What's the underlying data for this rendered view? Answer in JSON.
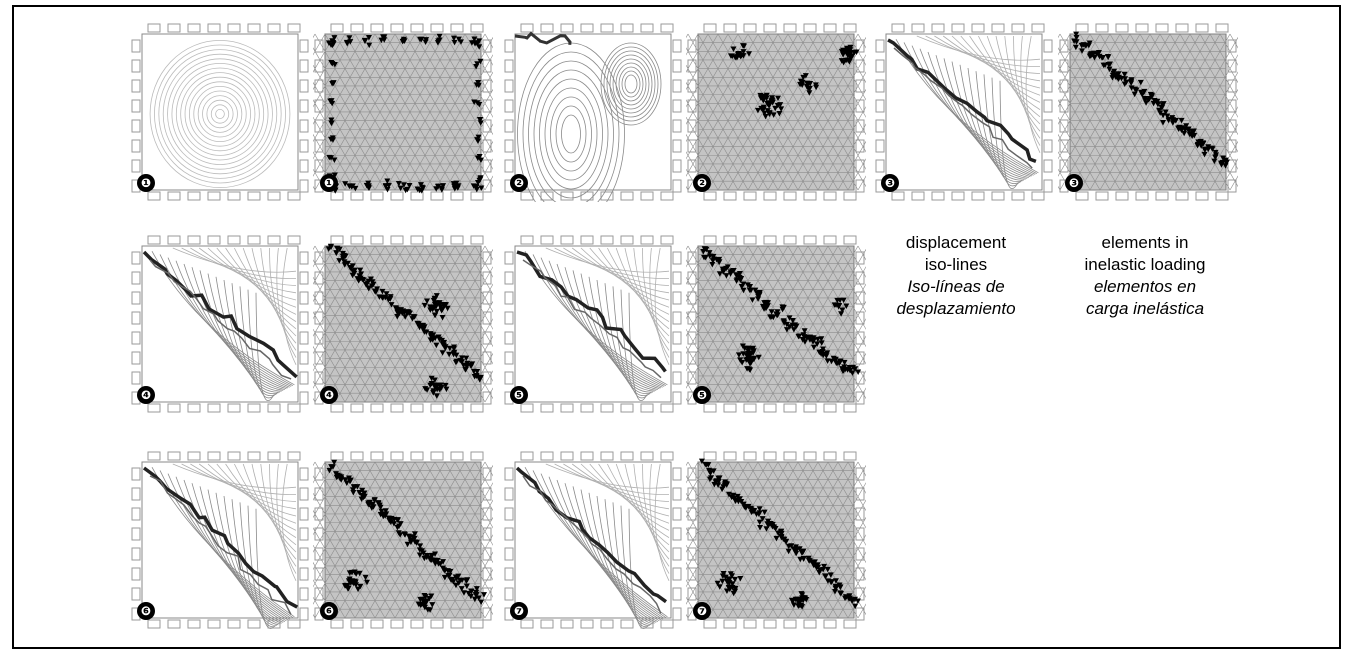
{
  "panels": [
    {
      "kind": "iso",
      "stage": "1",
      "badge": "❶"
    },
    {
      "kind": "mesh",
      "stage": "1",
      "badge": "❶"
    },
    {
      "kind": "iso",
      "stage": "2",
      "badge": "❷"
    },
    {
      "kind": "mesh",
      "stage": "2",
      "badge": "❷"
    },
    {
      "kind": "iso",
      "stage": "3",
      "badge": "❸"
    },
    {
      "kind": "mesh",
      "stage": "3",
      "badge": "❸"
    },
    {
      "kind": "iso",
      "stage": "4",
      "badge": "❹"
    },
    {
      "kind": "mesh",
      "stage": "4",
      "badge": "❹"
    },
    {
      "kind": "iso",
      "stage": "5",
      "badge": "❺"
    },
    {
      "kind": "mesh",
      "stage": "5",
      "badge": "❺"
    },
    {
      "kind": "iso",
      "stage": "6",
      "badge": "❻"
    },
    {
      "kind": "mesh",
      "stage": "6",
      "badge": "❻"
    },
    {
      "kind": "iso",
      "stage": "7",
      "badge": "❼"
    },
    {
      "kind": "mesh",
      "stage": "7",
      "badge": "❼"
    }
  ],
  "legend": {
    "iso": {
      "en_line1": "displacement",
      "en_line2": "iso-lines",
      "es_line1": "Iso-líneas de",
      "es_line2": "desplazamiento"
    },
    "mesh": {
      "en_line1": "elements in",
      "en_line2": "inelastic loading",
      "es_line1": "elementos en",
      "es_line2": "carga inelástica"
    }
  },
  "colors": {
    "mesh_fill": "#c4c4c4",
    "inelastic_fill": "#000000",
    "iso_line": "#8a8a8a",
    "frame": "#000000"
  }
}
